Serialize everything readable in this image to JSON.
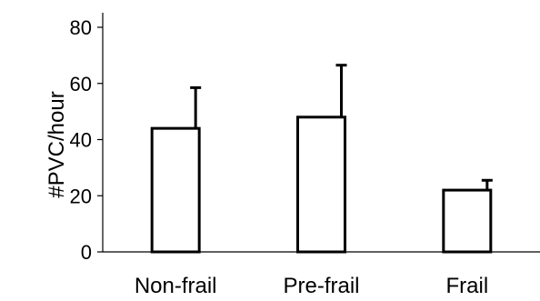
{
  "chart_data": {
    "type": "bar",
    "title": "",
    "xlabel": "",
    "ylabel": "#PVC/hour",
    "categories": [
      "Non-frail",
      "Pre-frail",
      "Frail"
    ],
    "values": [
      44,
      48,
      22
    ],
    "error_upper": [
      14.5,
      18.5,
      3.5
    ],
    "ylim": [
      0,
      80
    ],
    "yticks": [
      "0",
      "20",
      "40",
      "60",
      "80"
    ],
    "grid": false,
    "legend": "none",
    "bar_fill": "#ffffff",
    "bar_stroke": "#000000"
  }
}
